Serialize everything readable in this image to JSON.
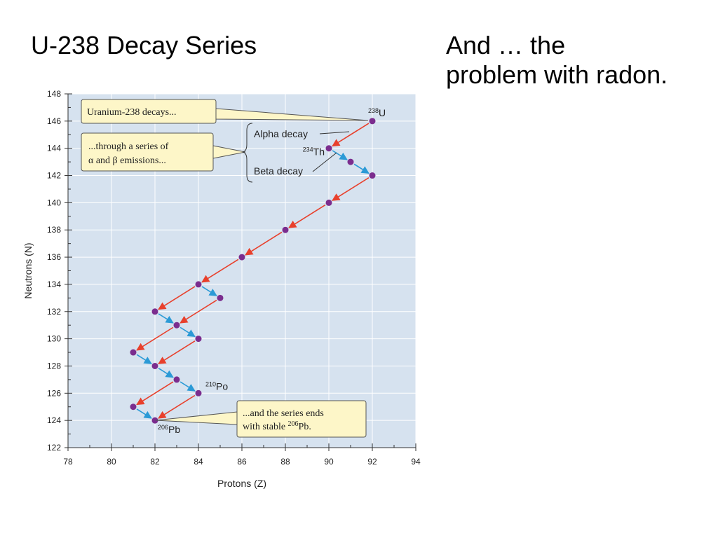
{
  "slide": {
    "title": "U-238 Decay Series",
    "side_text": [
      "And … the",
      "problem with radon."
    ]
  },
  "chart_data": {
    "type": "line",
    "xlabel": "Protons (Z)",
    "ylabel": "Neutrons (N)",
    "xlim": [
      78,
      94
    ],
    "ylim": [
      122,
      148
    ],
    "x_ticks": [
      78,
      80,
      82,
      84,
      86,
      88,
      90,
      92,
      94
    ],
    "y_ticks": [
      122,
      124,
      126,
      128,
      130,
      132,
      134,
      136,
      138,
      140,
      142,
      144,
      146,
      148
    ],
    "grid": true,
    "colors": {
      "plot_background": "#d6e2ef",
      "grid": "#ffffff",
      "nuclide": "#7b2d8e",
      "alpha_decay": "#e8402c",
      "beta_decay": "#2b9ad6",
      "callout_fill": "#fdf6c8",
      "callout_border": "#555555"
    },
    "nuclides": [
      {
        "z": 92,
        "n": 146
      },
      {
        "z": 90,
        "n": 144
      },
      {
        "z": 91,
        "n": 143
      },
      {
        "z": 92,
        "n": 142
      },
      {
        "z": 90,
        "n": 140
      },
      {
        "z": 88,
        "n": 138
      },
      {
        "z": 86,
        "n": 136
      },
      {
        "z": 84,
        "n": 134
      },
      {
        "z": 85,
        "n": 133
      },
      {
        "z": 82,
        "n": 132
      },
      {
        "z": 83,
        "n": 131
      },
      {
        "z": 84,
        "n": 130
      },
      {
        "z": 81,
        "n": 129
      },
      {
        "z": 82,
        "n": 128
      },
      {
        "z": 83,
        "n": 127
      },
      {
        "z": 84,
        "n": 126
      },
      {
        "z": 81,
        "n": 125
      },
      {
        "z": 82,
        "n": 124
      }
    ],
    "decays": [
      {
        "type": "alpha",
        "from": [
          92,
          146
        ],
        "to": [
          90,
          144
        ]
      },
      {
        "type": "beta",
        "from": [
          90,
          144
        ],
        "to": [
          91,
          143
        ]
      },
      {
        "type": "beta",
        "from": [
          91,
          143
        ],
        "to": [
          92,
          142
        ]
      },
      {
        "type": "alpha",
        "from": [
          92,
          142
        ],
        "to": [
          90,
          140
        ]
      },
      {
        "type": "alpha",
        "from": [
          90,
          140
        ],
        "to": [
          88,
          138
        ]
      },
      {
        "type": "alpha",
        "from": [
          88,
          138
        ],
        "to": [
          86,
          136
        ]
      },
      {
        "type": "alpha",
        "from": [
          86,
          136
        ],
        "to": [
          84,
          134
        ]
      },
      {
        "type": "beta",
        "from": [
          84,
          134
        ],
        "to": [
          85,
          133
        ]
      },
      {
        "type": "alpha",
        "from": [
          84,
          134
        ],
        "to": [
          82,
          132
        ]
      },
      {
        "type": "alpha",
        "from": [
          85,
          133
        ],
        "to": [
          83,
          131
        ]
      },
      {
        "type": "beta",
        "from": [
          82,
          132
        ],
        "to": [
          83,
          131
        ]
      },
      {
        "type": "beta",
        "from": [
          83,
          131
        ],
        "to": [
          84,
          130
        ]
      },
      {
        "type": "alpha",
        "from": [
          83,
          131
        ],
        "to": [
          81,
          129
        ]
      },
      {
        "type": "alpha",
        "from": [
          84,
          130
        ],
        "to": [
          82,
          128
        ]
      },
      {
        "type": "beta",
        "from": [
          81,
          129
        ],
        "to": [
          82,
          128
        ]
      },
      {
        "type": "beta",
        "from": [
          82,
          128
        ],
        "to": [
          83,
          127
        ]
      },
      {
        "type": "beta",
        "from": [
          83,
          127
        ],
        "to": [
          84,
          126
        ]
      },
      {
        "type": "alpha",
        "from": [
          83,
          127
        ],
        "to": [
          81,
          125
        ]
      },
      {
        "type": "alpha",
        "from": [
          84,
          126
        ],
        "to": [
          82,
          124
        ]
      },
      {
        "type": "beta",
        "from": [
          81,
          125
        ],
        "to": [
          82,
          124
        ]
      }
    ],
    "isotope_labels": [
      {
        "mass": "238",
        "symbol": "U",
        "z": 92,
        "n": 146
      },
      {
        "mass": "234",
        "symbol": "Th",
        "z": 90,
        "n": 144
      },
      {
        "mass": "210",
        "symbol": "Po",
        "z": 84,
        "n": 126
      },
      {
        "mass": "206",
        "symbol": "Pb",
        "z": 82,
        "n": 124
      }
    ],
    "annotations": {
      "alpha_label": "Alpha decay",
      "beta_label": "Beta decay",
      "callout_1": "Uranium-238 decays...",
      "callout_2_line1": "...through a series of",
      "callout_2_line2": "α and β emissions...",
      "callout_3_line1": "...and the series ends",
      "callout_3_line2_prefix": "with stable ",
      "callout_3_line2_mass": "206",
      "callout_3_line2_symbol": "Pb."
    }
  }
}
